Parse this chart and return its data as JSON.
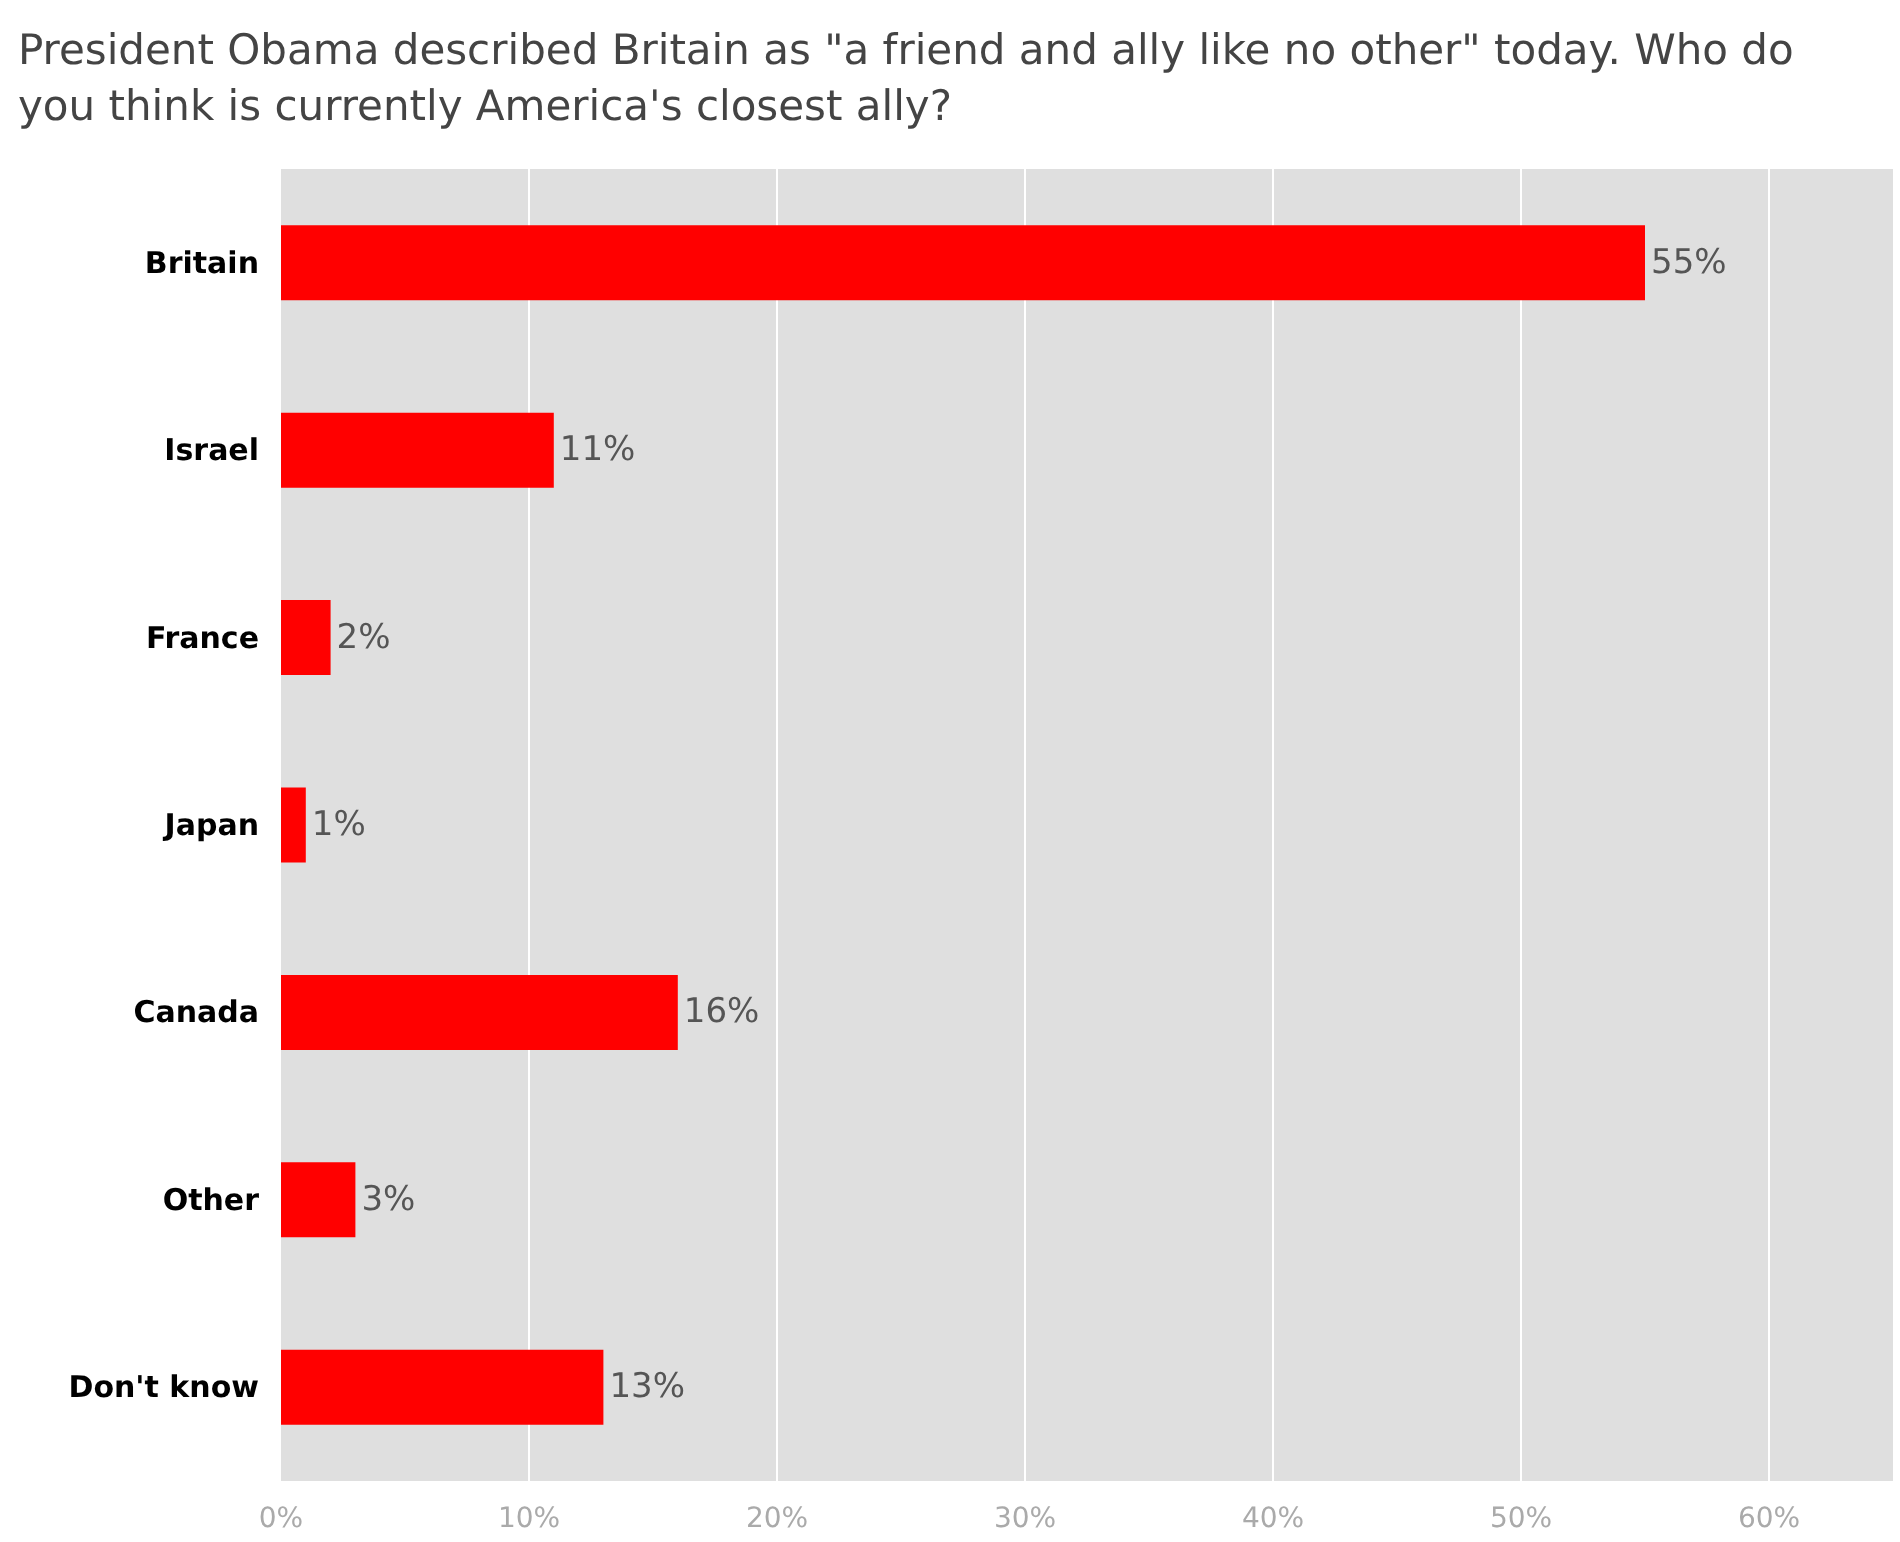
{
  "chart_data": {
    "type": "bar",
    "orientation": "horizontal",
    "title": "President Obama described Britain as \"a friend and ally like no other\" today. Who do you think is currently America's closest ally?",
    "categories": [
      "Britain",
      "Israel",
      "France",
      "Japan",
      "Canada",
      "Other",
      "Don't know"
    ],
    "values": [
      55,
      11,
      2,
      1,
      16,
      3,
      13
    ],
    "value_labels": [
      "55%",
      "11%",
      "2%",
      "1%",
      "16%",
      "3%",
      "13%"
    ],
    "color": "#ff0000",
    "xlim": [
      0,
      65
    ],
    "xticks": [
      {
        "value": 0,
        "label": "0%"
      },
      {
        "value": 10,
        "label": "10%"
      },
      {
        "value": 20,
        "label": "20%"
      },
      {
        "value": 30,
        "label": "30%"
      },
      {
        "value": 40,
        "label": "40%"
      },
      {
        "value": 50,
        "label": "50%"
      },
      {
        "value": 60,
        "label": "60%"
      }
    ],
    "grid": "x"
  }
}
